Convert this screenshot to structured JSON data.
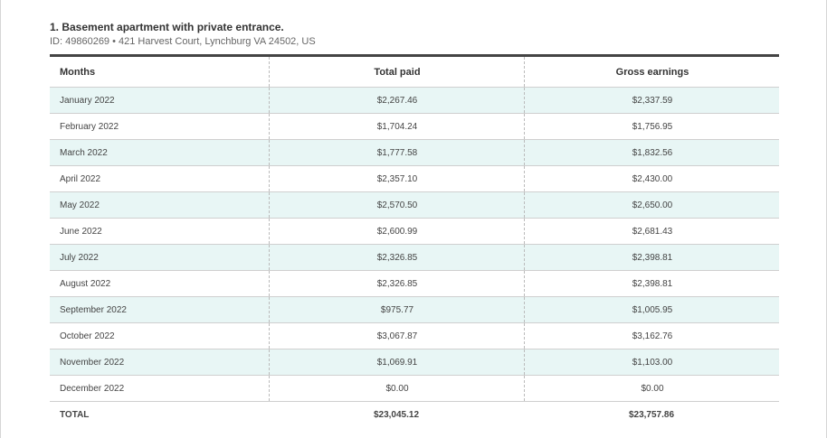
{
  "header": {
    "title": "1. Basement apartment with private entrance.",
    "subtitle": "ID: 49860269 • 421 Harvest Court, Lynchburg VA 24502, US"
  },
  "table": {
    "columns": [
      "Months",
      "Total paid",
      "Gross earnings"
    ],
    "rows": [
      [
        "January 2022",
        "$2,267.46",
        "$2,337.59"
      ],
      [
        "February 2022",
        "$1,704.24",
        "$1,756.95"
      ],
      [
        "March 2022",
        "$1,777.58",
        "$1,832.56"
      ],
      [
        "April 2022",
        "$2,357.10",
        "$2,430.00"
      ],
      [
        "May 2022",
        "$2,570.50",
        "$2,650.00"
      ],
      [
        "June 2022",
        "$2,600.99",
        "$2,681.43"
      ],
      [
        "July 2022",
        "$2,326.85",
        "$2,398.81"
      ],
      [
        "August 2022",
        "$2,326.85",
        "$2,398.81"
      ],
      [
        "September 2022",
        "$975.77",
        "$1,005.95"
      ],
      [
        "October 2022",
        "$3,067.87",
        "$3,162.76"
      ],
      [
        "November 2022",
        "$1,069.91",
        "$1,103.00"
      ],
      [
        "December 2022",
        "$0.00",
        "$0.00"
      ]
    ],
    "total": [
      "TOTAL",
      "$23,045.12",
      "$23,757.86"
    ]
  }
}
